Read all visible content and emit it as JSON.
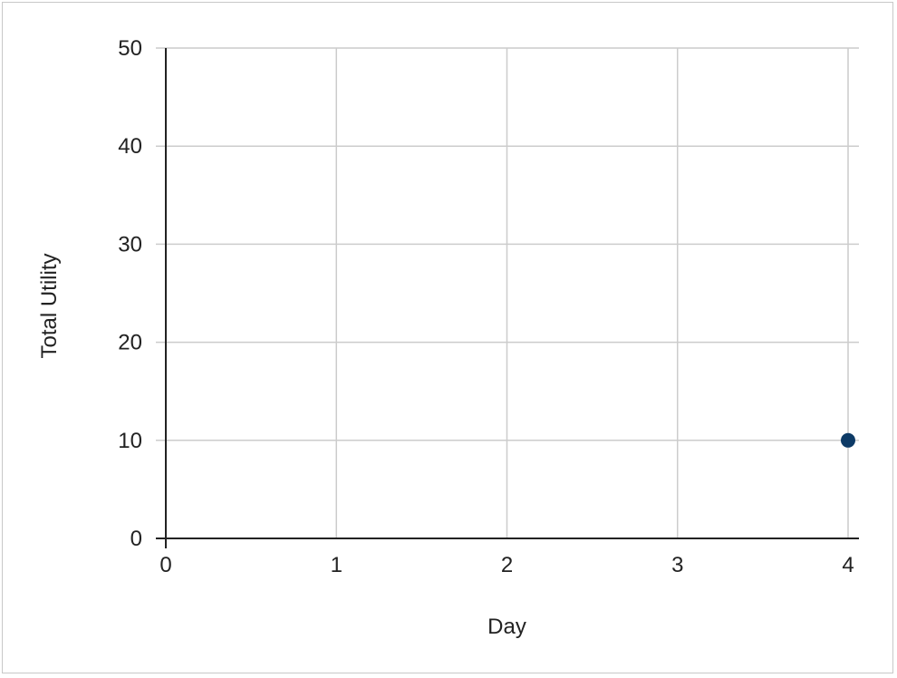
{
  "chart_data": {
    "type": "scatter",
    "title": "",
    "xlabel": "Day",
    "ylabel": "Total Utility",
    "xlim": [
      0,
      4
    ],
    "ylim": [
      0,
      50
    ],
    "x_ticks": [
      "0",
      "1",
      "2",
      "3",
      "4"
    ],
    "y_ticks": [
      "0",
      "10",
      "20",
      "30",
      "40",
      "50"
    ],
    "grid": true,
    "legend": "none",
    "series": [
      {
        "color": "#0d3a66",
        "points": [
          {
            "x": 4,
            "y": 10
          }
        ]
      }
    ]
  }
}
